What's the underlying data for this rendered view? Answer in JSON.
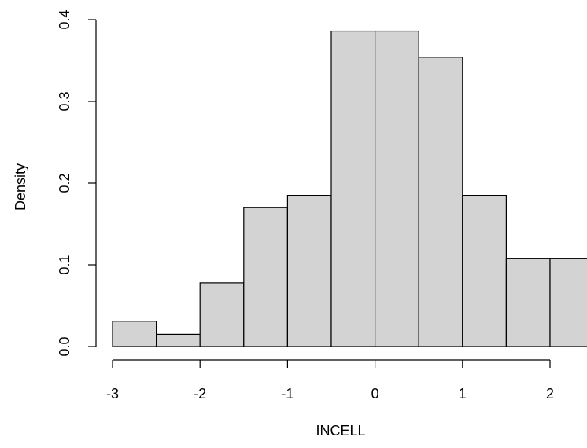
{
  "chart_data": {
    "type": "bar",
    "subtype": "histogram",
    "title": "",
    "xlabel": "INCELL",
    "ylabel": "Density",
    "bin_edges": [
      -3,
      -2.5,
      -2,
      -1.5,
      -1,
      -0.5,
      0,
      0.5,
      1,
      1.5,
      2,
      2.5
    ],
    "values": [
      0.031,
      0.015,
      0.078,
      0.17,
      0.185,
      0.386,
      0.386,
      0.354,
      0.185,
      0.108,
      0.108
    ],
    "xlim": [
      -3,
      2.5
    ],
    "ylim": [
      0,
      0.4
    ],
    "x_ticks": [
      -3,
      -2,
      -1,
      0,
      1,
      2
    ],
    "x_tick_labels": [
      "-3",
      "-2",
      "-1",
      "0",
      "1",
      "2"
    ],
    "y_ticks": [
      0,
      0.1,
      0.2,
      0.3,
      0.4
    ],
    "y_tick_labels": [
      "0.0",
      "0.1",
      "0.2",
      "0.3",
      "0.4"
    ],
    "bar_color": "#d3d3d3",
    "edge_color": "#000000",
    "grid": false,
    "legend": "none"
  }
}
